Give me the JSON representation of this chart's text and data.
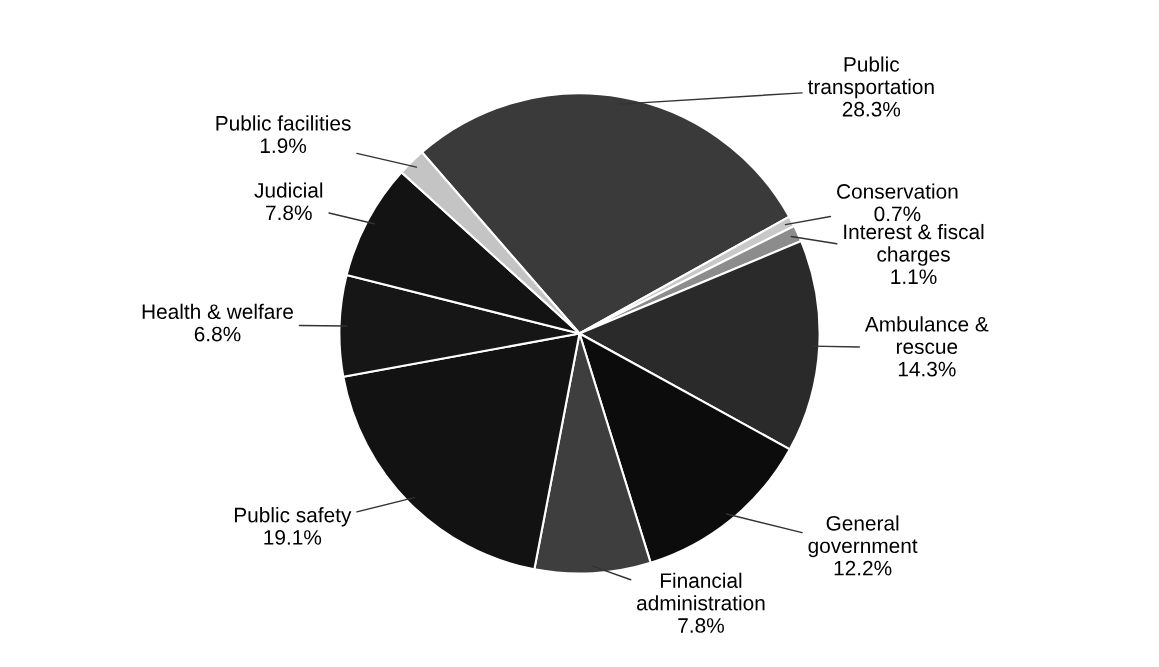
{
  "chart_data": {
    "type": "pie",
    "categories": [
      "Public\ntransportation",
      "Conservation",
      "Interest & fiscal\ncharges",
      "Ambulance &\nrescue",
      "General\ngovernment",
      "Financial\nadministration",
      "Public safety",
      "Health & welfare",
      "Judicial",
      "Public facilities"
    ],
    "values": [
      28.3,
      0.7,
      1.1,
      14.3,
      12.2,
      7.8,
      19.1,
      6.8,
      7.8,
      1.9
    ],
    "value_labels": [
      "28.3%",
      "0.7%",
      "1.1%",
      "14.3%",
      "12.2%",
      "7.8%",
      "19.1%",
      "6.8%",
      "7.8%",
      "1.9%"
    ],
    "colors": [
      "#3a3a3a",
      "#c8c8c8",
      "#8c8c8c",
      "#2a2a2a",
      "#0c0c0c",
      "#3e3e3e",
      "#121212",
      "#161616",
      "#131313",
      "#c4c4c4"
    ],
    "legend": false
  }
}
